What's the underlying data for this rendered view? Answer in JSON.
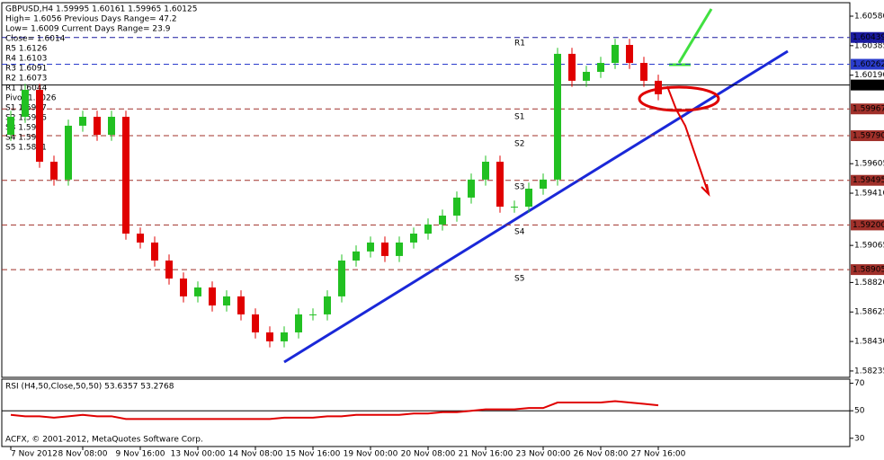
{
  "chart_data": {
    "type": "candlestick",
    "info": [
      "GBPUSD,H4 1.59995 1.60161 1.59965 1.60125",
      "High= 1.6056  Previous Days Range= 47.2",
      "Low= 1.6009  Current Days Range= 23.9",
      "Close= 1.6014"
    ],
    "pivots": [
      "R5 1.6126",
      "R4 1.6103",
      "R3 1.6091",
      "R2 1.6073",
      "R1 1.6044",
      "Pivot 1.6026",
      "S1 1.5997",
      "S2 1.5976",
      "S3 1.595",
      "S4 1.592",
      "S5 1.5891"
    ],
    "pivot_markers": [
      "R1",
      "S1",
      "S2",
      "S3",
      "S4",
      "S5"
    ],
    "categories": [
      "7 Nov 2012",
      null,
      null,
      null,
      null,
      "8 Nov 08:00",
      null,
      null,
      null,
      "9 Nov 16:00",
      null,
      null,
      null,
      "13 Nov 00:00",
      null,
      null,
      null,
      "14 Nov 08:00",
      null,
      null,
      null,
      "15 Nov 16:00",
      null,
      null,
      null,
      "19 Nov 00:00",
      null,
      null,
      null,
      "20 Nov 08:00",
      null,
      null,
      null,
      "21 Nov 16:00",
      null,
      null,
      null,
      "23 Nov 00:00",
      null,
      null,
      null,
      "26 Nov 08:00",
      null,
      null,
      null,
      "27 Nov 16:00"
    ],
    "open": [
      1.59796,
      1.59915,
      1.60093,
      1.59618,
      1.595,
      1.59856,
      1.59915,
      1.59796,
      1.59915,
      1.59143,
      1.59084,
      1.58965,
      1.58846,
      1.58728,
      1.58787,
      1.58668,
      1.58728,
      1.58609,
      1.5849,
      1.58431,
      1.5849,
      1.58609,
      1.58609,
      1.58728,
      1.58965,
      1.59025,
      1.59084,
      1.58995,
      1.59084,
      1.59143,
      1.59203,
      1.59262,
      1.59381,
      1.595,
      1.59618,
      1.59321,
      1.59321,
      1.5944,
      1.595,
      1.60331,
      1.60153,
      1.60212,
      1.60271,
      1.6039,
      1.60271,
      1.60153
    ],
    "high": [
      1.59955,
      1.60133,
      1.60133,
      1.59658,
      1.59896,
      1.59955,
      1.59955,
      1.59955,
      1.59955,
      1.59183,
      1.59124,
      1.59005,
      1.58886,
      1.58827,
      1.58827,
      1.58768,
      1.58768,
      1.58649,
      1.5853,
      1.5853,
      1.58649,
      1.58649,
      1.58768,
      1.59005,
      1.59065,
      1.59124,
      1.59124,
      1.59124,
      1.59183,
      1.59243,
      1.59302,
      1.59421,
      1.5954,
      1.59658,
      1.59658,
      1.59361,
      1.5948,
      1.5954,
      1.60371,
      1.60371,
      1.60252,
      1.60311,
      1.6043,
      1.6043,
      1.60311,
      1.60193
    ],
    "low": [
      1.59756,
      1.59875,
      1.59578,
      1.5946,
      1.5946,
      1.59816,
      1.59756,
      1.59756,
      1.59103,
      1.59044,
      1.58925,
      1.58806,
      1.58688,
      1.58688,
      1.58628,
      1.58628,
      1.58569,
      1.5845,
      1.58391,
      1.58391,
      1.5845,
      1.58569,
      1.58569,
      1.58688,
      1.58925,
      1.58985,
      1.58955,
      1.58955,
      1.59044,
      1.59103,
      1.59163,
      1.59222,
      1.59341,
      1.5946,
      1.59281,
      1.59281,
      1.59281,
      1.594,
      1.5946,
      1.60113,
      1.60113,
      1.60172,
      1.60231,
      1.60231,
      1.60113,
      1.60024
    ],
    "close": [
      1.59915,
      1.60093,
      1.59618,
      1.595,
      1.59856,
      1.59915,
      1.59796,
      1.59915,
      1.59143,
      1.59084,
      1.58965,
      1.58846,
      1.58728,
      1.58787,
      1.58668,
      1.58728,
      1.58609,
      1.5849,
      1.58431,
      1.5849,
      1.58609,
      1.58609,
      1.58728,
      1.58965,
      1.59025,
      1.59084,
      1.58995,
      1.59084,
      1.59143,
      1.59203,
      1.59262,
      1.59381,
      1.595,
      1.59618,
      1.59321,
      1.59321,
      1.5944,
      1.595,
      1.60331,
      1.60153,
      1.60212,
      1.60271,
      1.6039,
      1.60271,
      1.60153,
      1.60064
    ],
    "up_color": "#22c022",
    "down_color": "#e00000",
    "ylim": [
      1.58193,
      1.60669
    ],
    "yticks": [
      {
        "value": 1.6058,
        "label": "1.60580"
      },
      1.60385,
      {
        "value": 1.6019,
        "label": "1.60190"
      },
      1.59605,
      {
        "value": 1.5941,
        "label": "1.59410"
      },
      1.59065,
      {
        "value": 1.5882,
        "label": "1.58820"
      },
      1.58625,
      {
        "value": 1.5843,
        "label": "1.58430"
      },
      1.58235
    ],
    "levels": [
      {
        "value": 1.60439,
        "color": "#1a1aa0"
      },
      {
        "value": 1.60262,
        "color": "#2a3ccc"
      },
      {
        "value": 1.60125,
        "color": "#000000"
      },
      {
        "value": 1.59967,
        "color": "#a0302a"
      },
      {
        "value": 1.5979,
        "label": "1.59790",
        "color": "#a0302a"
      },
      {
        "value": 1.59495,
        "color": "#a0302a"
      },
      {
        "value": 1.592,
        "label": "1.59200",
        "color": "#a0302a"
      },
      {
        "value": 1.58905,
        "color": "#a0302a"
      }
    ],
    "rsi": {
      "title": "RSI (H4,50,Close,50,50) 53.6357 53.2768",
      "color": "#e00000",
      "values": [
        47,
        46,
        46,
        45,
        46,
        47,
        46,
        46,
        44,
        44,
        44,
        44,
        44,
        44,
        44,
        44,
        44,
        44,
        44,
        45,
        45,
        45,
        46,
        46,
        47,
        47,
        47,
        47,
        48,
        48,
        49,
        49,
        50,
        51,
        51,
        51,
        52,
        52,
        56,
        56,
        56,
        56,
        57,
        56,
        55,
        54
      ],
      "ylim": [
        24,
        73
      ],
      "yticks": [
        70,
        50,
        30
      ]
    },
    "copyright": "ACFX, © 2001-2012, MetaQuotes Software Corp."
  }
}
